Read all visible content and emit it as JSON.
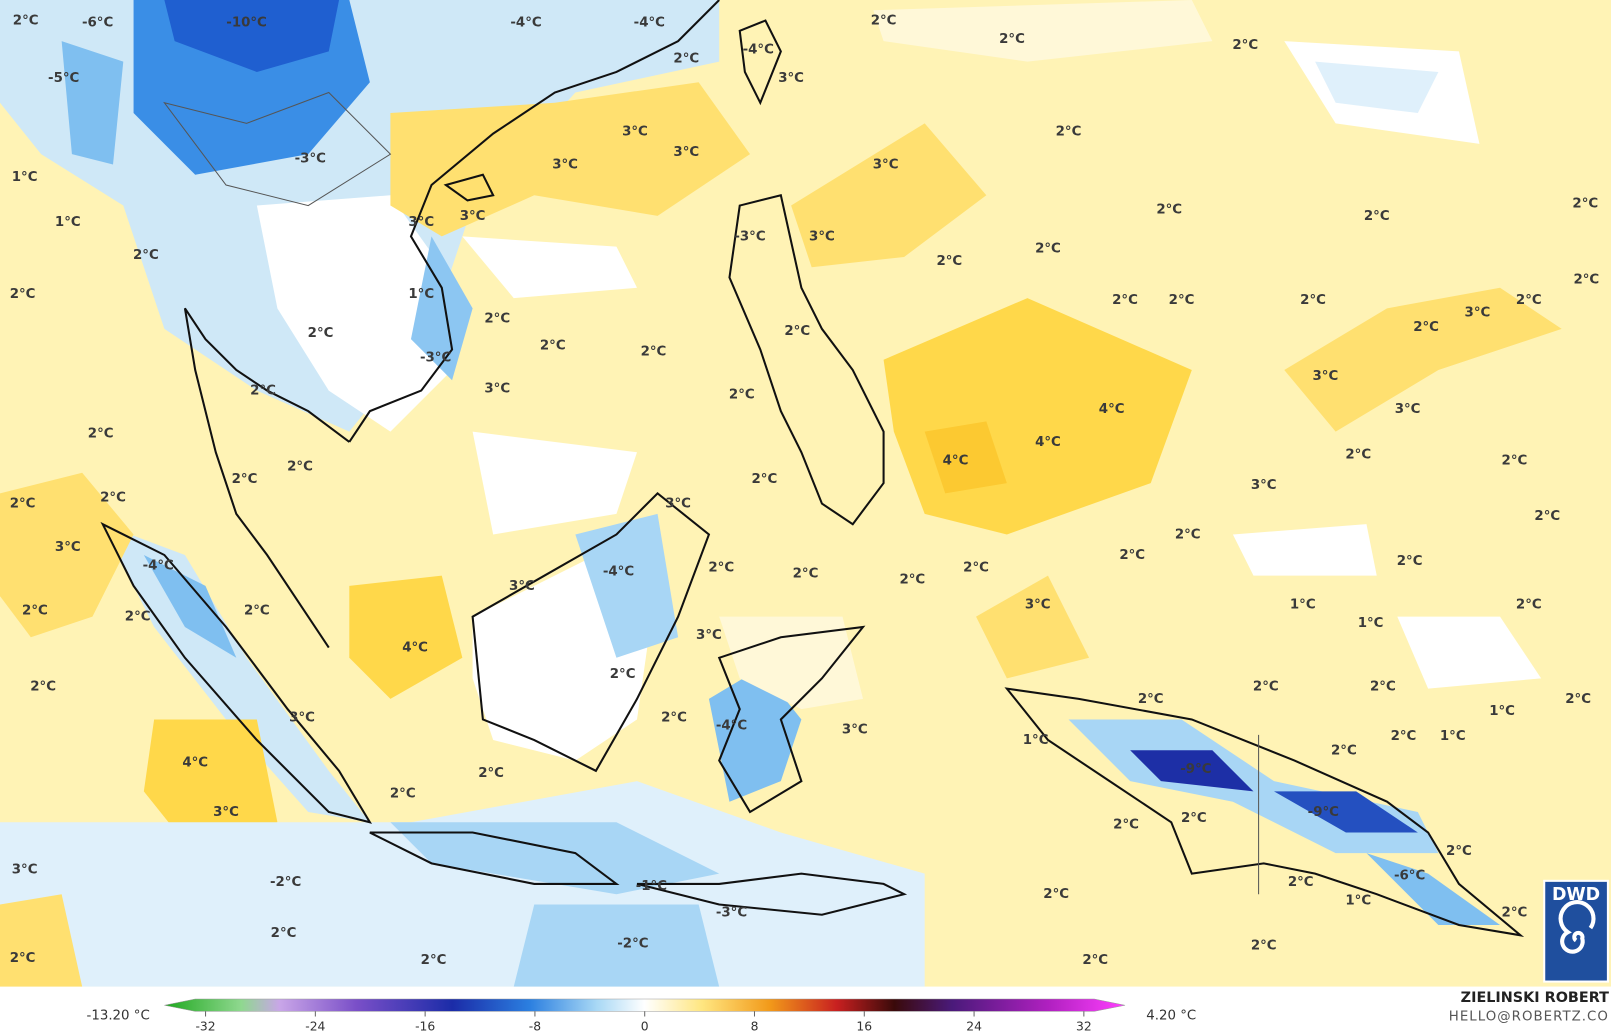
{
  "map": {
    "labels": [
      "2°C",
      "-6°C",
      "-10°C",
      "-4°C",
      "-4°C",
      "-5°C",
      "2°C",
      "-4°C",
      "3°C",
      "2°C",
      "2°C",
      "2°C",
      "-3°C",
      "3°C",
      "3°C",
      "3°C",
      "2°C",
      "3°C",
      "1°C",
      "1°C",
      "3°C",
      "3°C",
      "-3°C",
      "3°C",
      "2°C",
      "2°C",
      "2°C",
      "2°C",
      "2°C",
      "2°C",
      "2°C",
      "2°C",
      "1°C",
      "2°C",
      "2°C",
      "2°C",
      "2°C",
      "3°C",
      "2°C",
      "2°C",
      "2°C",
      "2°C",
      "2°C",
      "2°C",
      "-3°C",
      "2°C",
      "3°C",
      "2°C",
      "3°C",
      "4°C",
      "3°C",
      "4°C",
      "4°C",
      "2°C",
      "2°C",
      "2°C",
      "2°C",
      "2°C",
      "3°C",
      "2°C",
      "2°C",
      "2°C",
      "3°C",
      "2°C",
      "3°C",
      "-4°C",
      "-4°C",
      "2°C",
      "2°C",
      "2°C",
      "2°C",
      "2°C",
      "2°C",
      "2°C",
      "3°C",
      "3°C",
      "1°C",
      "2°C",
      "1°C",
      "2°C",
      "2°C",
      "2°C",
      "4°C",
      "3°C",
      "2°C",
      "2°C",
      "2°C",
      "2°C",
      "2°C",
      "2°C",
      "1°C",
      "2°C",
      "3°C",
      "-4°C",
      "3°C",
      "2°C",
      "1°C",
      "1°C",
      "2°C",
      "4°C",
      "-9°C",
      "2°C",
      "2°C",
      "3°C",
      "-9°C",
      "2°C",
      "2°C",
      "2°C",
      "3°C",
      "-2°C",
      "-1°C",
      "2°C",
      "-6°C",
      "2°C",
      "1°C",
      "2°C",
      "-3°C",
      "2°C",
      "-2°C",
      "2°C",
      "2°C",
      "2°C",
      "2°C"
    ]
  },
  "colorbar": {
    "min_label": "-13.20 °C",
    "max_label": "4.20 °C",
    "range": [
      -35,
      35
    ],
    "ticks": [
      -32,
      -24,
      -16,
      -8,
      0,
      8,
      16,
      24,
      32
    ]
  },
  "credit": {
    "name": "ZIELINSKI ROBERT",
    "email": "HELLO@ROBERTZ.CO",
    "logo": "DWD"
  }
}
